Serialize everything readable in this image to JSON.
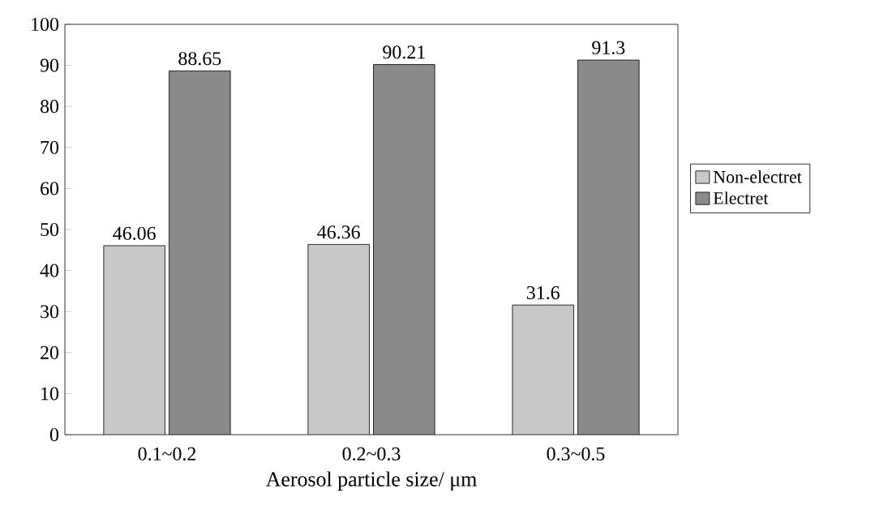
{
  "chart_data": {
    "type": "bar",
    "xlabel": "Aerosol particle size/ μm",
    "categories": [
      "0.1~0.2",
      "0.2~0.3",
      "0.3~0.5"
    ],
    "series": [
      {
        "name": "Non-electret",
        "color": "#c8c8c8",
        "values": [
          46.06,
          46.36,
          31.6
        ],
        "value_labels": [
          "46.06",
          "46.36",
          "31.6"
        ]
      },
      {
        "name": "Electret",
        "color": "#8a8a8a",
        "values": [
          88.65,
          90.21,
          91.3
        ],
        "value_labels": [
          "88.65",
          "90.21",
          "91.3"
        ]
      }
    ],
    "ylim": [
      0,
      100
    ],
    "yticks": [
      0,
      10,
      20,
      30,
      40,
      50,
      60,
      70,
      80,
      90,
      100
    ],
    "legend": "right"
  }
}
